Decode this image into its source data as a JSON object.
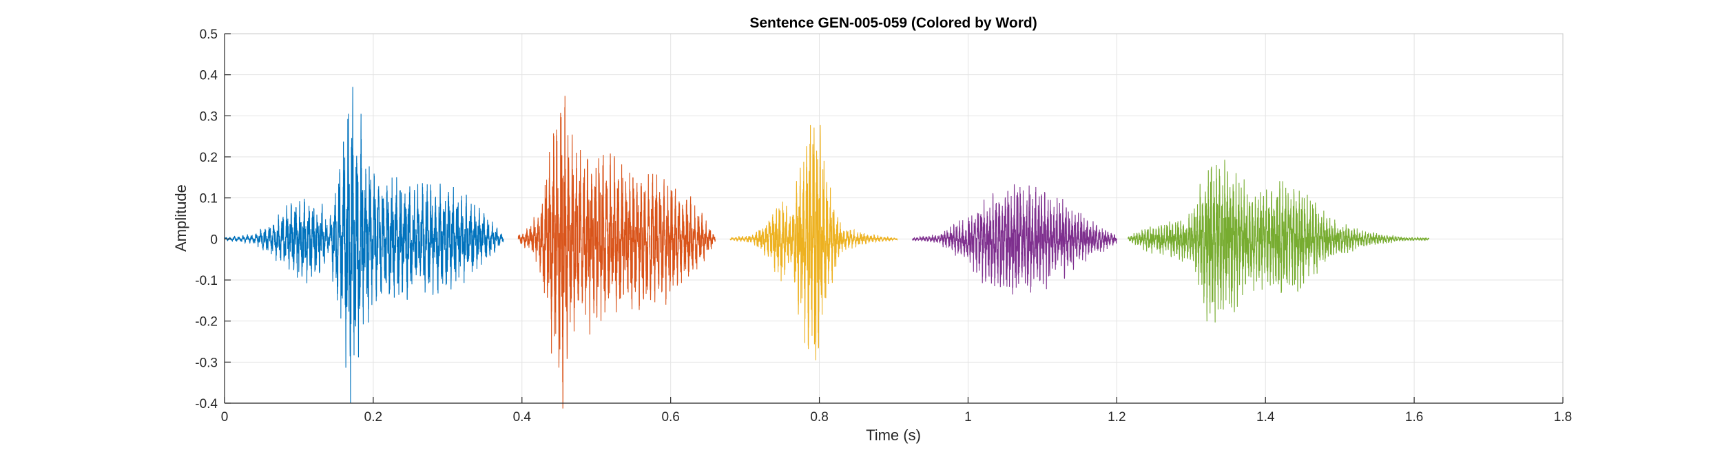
{
  "chart_data": {
    "type": "line",
    "title": "Sentence GEN-005-059 (Colored by Word)",
    "xlabel": "Time (s)",
    "ylabel": "Amplitude",
    "xlim": [
      0,
      1.8
    ],
    "ylim": [
      -0.4,
      0.5
    ],
    "xticks": [
      0,
      0.2,
      0.4,
      0.6,
      0.8,
      1,
      1.2,
      1.4,
      1.6,
      1.8
    ],
    "xtick_labels": [
      "0",
      "0.2",
      "0.4",
      "0.6",
      "0.8",
      "1",
      "1.2",
      "1.4",
      "1.6",
      "1.8"
    ],
    "yticks": [
      -0.4,
      -0.3,
      -0.2,
      -0.1,
      0,
      0.1,
      0.2,
      0.3,
      0.4,
      0.5
    ],
    "ytick_labels": [
      "-0.4",
      "-0.3",
      "-0.2",
      "-0.1",
      "0",
      "0.1",
      "0.2",
      "0.3",
      "0.4",
      "0.5"
    ],
    "grid": true,
    "series": [
      {
        "color": "#0072BD",
        "t_start": 0.0,
        "t_end": 0.375,
        "envelope": [
          [
            0.0,
            0.004
          ],
          [
            0.04,
            0.012
          ],
          [
            0.07,
            0.05
          ],
          [
            0.1,
            0.11
          ],
          [
            0.13,
            0.09
          ],
          [
            0.14,
            0.03
          ],
          [
            0.155,
            0.2
          ],
          [
            0.17,
            0.39
          ],
          [
            0.18,
            0.3
          ],
          [
            0.2,
            0.16
          ],
          [
            0.23,
            0.15
          ],
          [
            0.26,
            0.14
          ],
          [
            0.3,
            0.13
          ],
          [
            0.34,
            0.08
          ],
          [
            0.375,
            0.01
          ]
        ]
      },
      {
        "color": "#D95319",
        "t_start": 0.395,
        "t_end": 0.66,
        "envelope": [
          [
            0.395,
            0.01
          ],
          [
            0.41,
            0.03
          ],
          [
            0.425,
            0.08
          ],
          [
            0.445,
            0.33
          ],
          [
            0.455,
            0.38
          ],
          [
            0.47,
            0.22
          ],
          [
            0.5,
            0.21
          ],
          [
            0.53,
            0.19
          ],
          [
            0.56,
            0.17
          ],
          [
            0.6,
            0.14
          ],
          [
            0.64,
            0.07
          ],
          [
            0.66,
            0.008
          ]
        ]
      },
      {
        "color": "#EDB120",
        "t_start": 0.68,
        "t_end": 0.905,
        "envelope": [
          [
            0.68,
            0.003
          ],
          [
            0.71,
            0.01
          ],
          [
            0.735,
            0.06
          ],
          [
            0.75,
            0.12
          ],
          [
            0.76,
            0.05
          ],
          [
            0.78,
            0.25
          ],
          [
            0.795,
            0.36
          ],
          [
            0.81,
            0.15
          ],
          [
            0.83,
            0.03
          ],
          [
            0.87,
            0.01
          ],
          [
            0.905,
            0.002
          ]
        ]
      },
      {
        "color": "#7E2F8E",
        "t_start": 0.925,
        "t_end": 1.2,
        "envelope": [
          [
            0.925,
            0.003
          ],
          [
            0.96,
            0.01
          ],
          [
            1.0,
            0.06
          ],
          [
            1.03,
            0.12
          ],
          [
            1.06,
            0.145
          ],
          [
            1.09,
            0.13
          ],
          [
            1.12,
            0.1
          ],
          [
            1.16,
            0.05
          ],
          [
            1.2,
            0.01
          ]
        ]
      },
      {
        "color": "#77AC30",
        "t_start": 1.215,
        "t_end": 1.62,
        "envelope": [
          [
            1.215,
            0.005
          ],
          [
            1.24,
            0.03
          ],
          [
            1.27,
            0.04
          ],
          [
            1.3,
            0.06
          ],
          [
            1.32,
            0.19
          ],
          [
            1.345,
            0.2
          ],
          [
            1.38,
            0.11
          ],
          [
            1.42,
            0.14
          ],
          [
            1.45,
            0.12
          ],
          [
            1.49,
            0.05
          ],
          [
            1.53,
            0.02
          ],
          [
            1.58,
            0.006
          ],
          [
            1.62,
            0.002
          ]
        ]
      }
    ]
  }
}
